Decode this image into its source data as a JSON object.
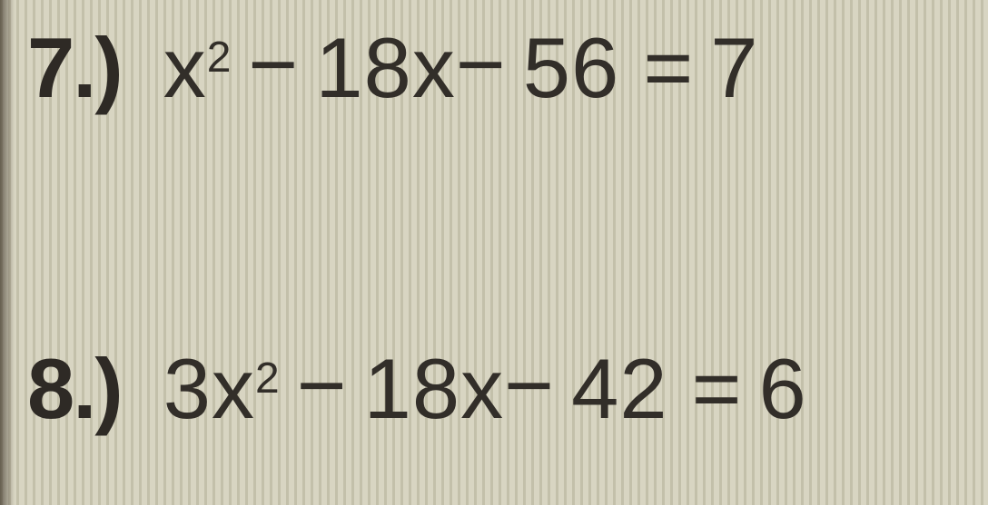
{
  "background": {
    "base_color": "#d8d5c2",
    "stripe_color": "#aeaa96",
    "text_color": "#312d28"
  },
  "problems": {
    "p7": {
      "number": "7.)",
      "expression": "x² − 18x− 56 = 7",
      "fontsize": 94,
      "number_fontweight": 700
    },
    "p8": {
      "number": "8.)",
      "expression": "3x² − 18x− 42 = 6",
      "fontsize": 94,
      "number_fontweight": 700
    }
  }
}
